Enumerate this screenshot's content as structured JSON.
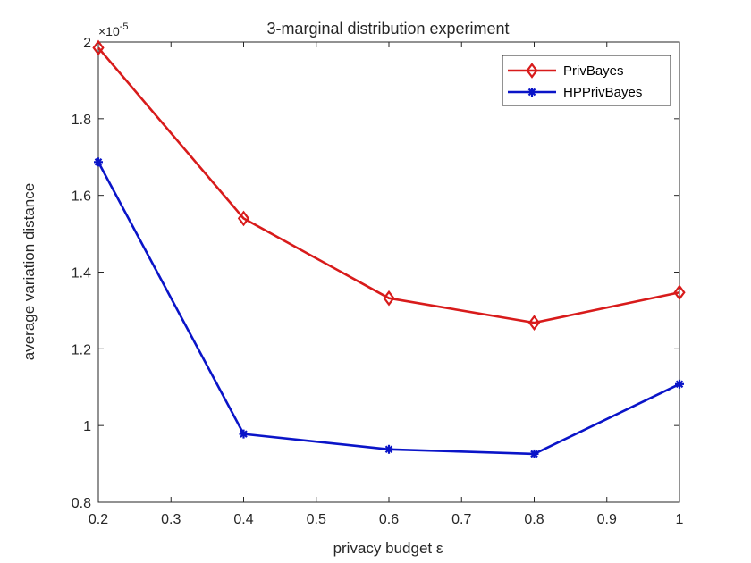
{
  "chart_data": {
    "type": "line",
    "title": "3-marginal distribution experiment",
    "xlabel": "privacy budget ε",
    "ylabel": "average variation distance",
    "y_exponent_label": "×10",
    "y_exponent_power": "-5",
    "xlim": [
      0.2,
      1.0
    ],
    "ylim": [
      0.8,
      2.0
    ],
    "x_ticks": [
      0.2,
      0.3,
      0.4,
      0.5,
      0.6,
      0.7,
      0.8,
      0.9,
      1.0
    ],
    "x_tick_labels": [
      "0.2",
      "0.3",
      "0.4",
      "0.5",
      "0.6",
      "0.7",
      "0.8",
      "0.9",
      "1"
    ],
    "y_ticks": [
      0.8,
      1.0,
      1.2,
      1.4,
      1.6,
      1.8,
      2.0
    ],
    "y_tick_labels": [
      "0.8",
      "1",
      "1.2",
      "1.4",
      "1.6",
      "1.8",
      "2"
    ],
    "x": [
      0.2,
      0.4,
      0.6,
      0.8,
      1.0
    ],
    "series": [
      {
        "name": "PrivBayes",
        "values": [
          1.985,
          1.54,
          1.332,
          1.268,
          1.347
        ],
        "color": "#d81b1b",
        "marker": "diamond"
      },
      {
        "name": "HPPrivBayes",
        "values": [
          1.687,
          0.978,
          0.938,
          0.926,
          1.108
        ],
        "color": "#0a14c8",
        "marker": "asterisk"
      }
    ],
    "legend_position": "top-right",
    "grid": false
  }
}
